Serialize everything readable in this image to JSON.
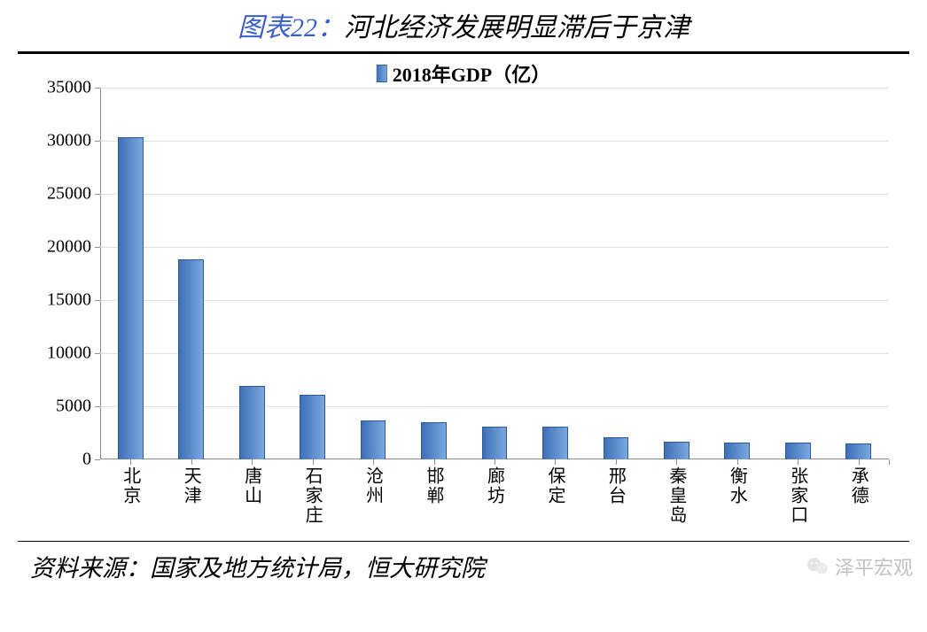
{
  "title": {
    "prefix": "图表22：",
    "text": "河北经济发展明显滞后于京津",
    "prefix_color": "#3a5fcd",
    "text_color": "#000000",
    "fontsize": 30
  },
  "legend": {
    "label": "2018年GDP（亿）",
    "swatch_fill": "#3f79c6",
    "swatch_stroke": "#2b5a9c",
    "fontsize": 22
  },
  "chart": {
    "type": "bar",
    "categories": [
      "北京",
      "天津",
      "唐山",
      "石家庄",
      "沧州",
      "邯郸",
      "廊坊",
      "保定",
      "邢台",
      "秦皇岛",
      "衡水",
      "张家口",
      "承德"
    ],
    "values": [
      30300,
      18800,
      6900,
      6100,
      3700,
      3500,
      3100,
      3100,
      2100,
      1650,
      1550,
      1550,
      1500
    ],
    "bar_fill": "#5a8fd0",
    "bar_stroke": "#2b5a9c",
    "bar_gradient_left": "#3f6fb8",
    "bar_gradient_right": "#7aa8de",
    "ylim": [
      0,
      35000
    ],
    "ytick_step": 5000,
    "yticks": [
      0,
      5000,
      10000,
      15000,
      20000,
      25000,
      30000,
      35000
    ],
    "grid_color": "#e0e0e0",
    "axis_color": "#8d8d8d",
    "background_color": "#ffffff",
    "bar_width_ratio": 0.42,
    "label_fontsize": 20,
    "tick_fontsize": 20
  },
  "source": {
    "label": "资料来源：国家及地方统计局，恒大研究院",
    "fontsize": 27
  },
  "watermark": {
    "text": "泽平宏观",
    "icon_color": "#b8b8b8"
  },
  "rules": {
    "thick_color": "#000000",
    "thin_color": "#000000"
  }
}
